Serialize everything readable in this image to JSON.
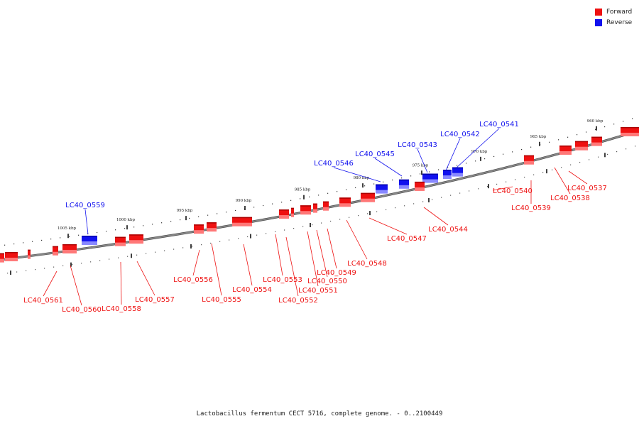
{
  "caption": "Lactobacillus fermentum CECT 5716, complete genome. - 0..2100449",
  "legend": [
    {
      "label": "Forward",
      "color": "#ee1111"
    },
    {
      "label": "Reverse",
      "color": "#1111ee"
    }
  ],
  "colors": {
    "forward": "#ee1111",
    "reverse": "#1111ee",
    "backbone": "#888888"
  },
  "scale_labels": [
    "960 kbp",
    "965 kbp",
    "970 kbp",
    "975 kbp",
    "980 kbp",
    "985 kbp",
    "990 kbp",
    "995 kbp",
    "1000 kbp",
    "1005 kbp"
  ],
  "genes": [
    {
      "id": "LC40_0537",
      "strand": "forward"
    },
    {
      "id": "LC40_0538",
      "strand": "forward"
    },
    {
      "id": "LC40_0539",
      "strand": "forward"
    },
    {
      "id": "LC40_0540",
      "strand": "forward"
    },
    {
      "id": "LC40_0541",
      "strand": "reverse"
    },
    {
      "id": "LC40_0542",
      "strand": "reverse"
    },
    {
      "id": "LC40_0543",
      "strand": "reverse"
    },
    {
      "id": "LC40_0544",
      "strand": "forward"
    },
    {
      "id": "LC40_0545",
      "strand": "reverse"
    },
    {
      "id": "LC40_0546",
      "strand": "reverse"
    },
    {
      "id": "LC40_0547",
      "strand": "forward"
    },
    {
      "id": "LC40_0548",
      "strand": "forward"
    },
    {
      "id": "LC40_0549",
      "strand": "forward"
    },
    {
      "id": "LC40_0550",
      "strand": "forward"
    },
    {
      "id": "LC40_0551",
      "strand": "forward"
    },
    {
      "id": "LC40_0552",
      "strand": "forward"
    },
    {
      "id": "LC40_0553",
      "strand": "forward"
    },
    {
      "id": "LC40_0554",
      "strand": "forward"
    },
    {
      "id": "LC40_0555",
      "strand": "forward"
    },
    {
      "id": "LC40_0556",
      "strand": "forward"
    },
    {
      "id": "LC40_0557",
      "strand": "forward"
    },
    {
      "id": "LC40_0558",
      "strand": "forward"
    },
    {
      "id": "LC40_0559",
      "strand": "reverse"
    },
    {
      "id": "LC40_0560",
      "strand": "forward"
    },
    {
      "id": "LC40_0561",
      "strand": "forward"
    }
  ]
}
